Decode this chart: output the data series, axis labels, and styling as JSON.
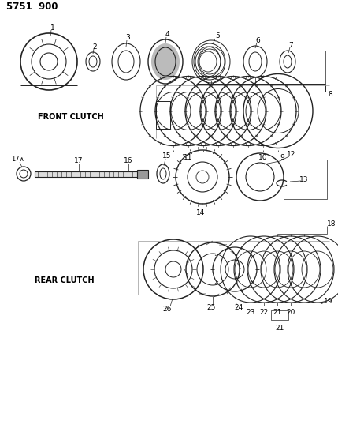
{
  "title": "5751  900",
  "background_color": "#ffffff",
  "line_color": "#222222",
  "front_clutch_label": "FRONT CLUTCH",
  "rear_clutch_label": "REAR CLUTCH",
  "figsize": [
    4.29,
    5.33
  ],
  "dpi": 100
}
